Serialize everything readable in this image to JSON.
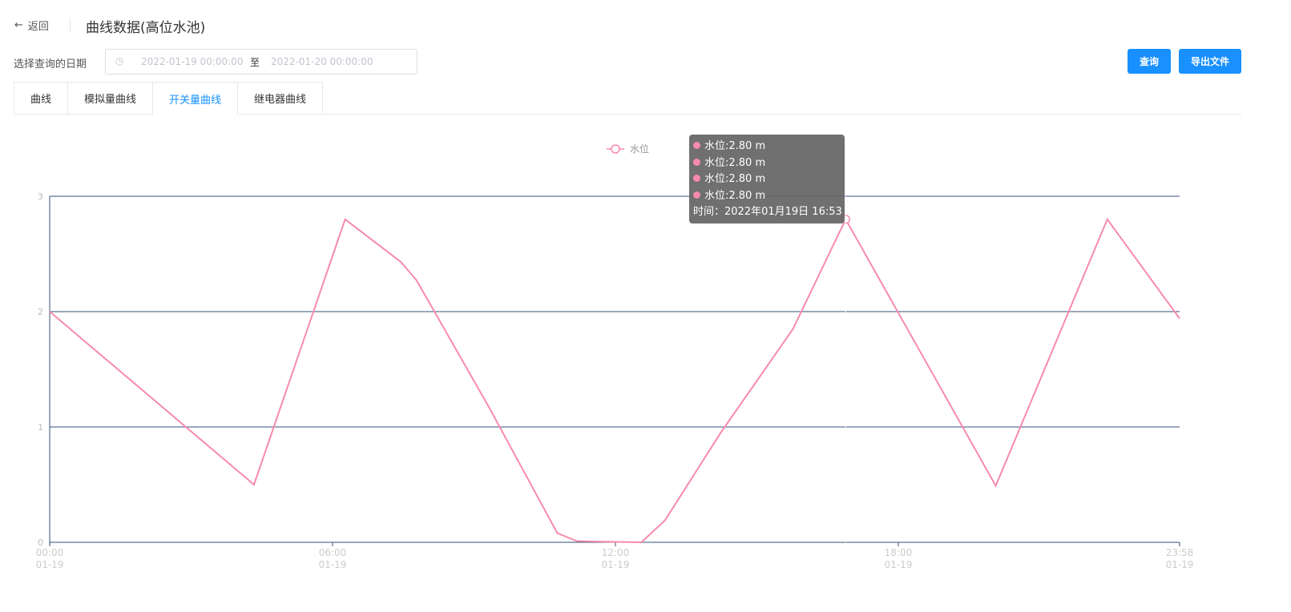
{
  "header": {
    "back_label": "返回",
    "title": "曲线数据(高位水池)"
  },
  "filter": {
    "label": "选择查询的日期",
    "start": "2022-01-19 00:00:00",
    "separator": "至",
    "end": "2022-01-20 00:00:00",
    "query_label": "查询",
    "export_label": "导出文件"
  },
  "tabs": [
    {
      "label": "曲线"
    },
    {
      "label": "模拟量曲线"
    },
    {
      "label": "开关量曲线",
      "active": true
    },
    {
      "label": "继电器曲线"
    }
  ],
  "tooltip": {
    "rows": [
      "水位:2.80 m",
      "水位:2.80 m",
      "水位:2.80 m",
      "水位:2.80 m"
    ],
    "time": "时间：2022年01月19日 16:53"
  },
  "chart_data": {
    "type": "line",
    "legend": [
      "水位"
    ],
    "legend_position": "top-center",
    "series": [
      {
        "name": "水位",
        "color": "#f78bab",
        "points": [
          [
            "00:00",
            2.0
          ],
          [
            "04:20",
            0.5
          ],
          [
            "06:16",
            2.8
          ],
          [
            "07:27",
            2.43
          ],
          [
            "07:47",
            2.27
          ],
          [
            "08:13",
            1.96
          ],
          [
            "09:20",
            1.16
          ],
          [
            "10:46",
            0.08
          ],
          [
            "11:11",
            0.01
          ],
          [
            "12:33",
            0
          ],
          [
            "13:03",
            0.19
          ],
          [
            "14:14",
            0.95
          ],
          [
            "15:46",
            1.85
          ],
          [
            "16:53",
            2.8
          ],
          [
            "20:04",
            0.49
          ],
          [
            "22:26",
            2.8
          ],
          [
            "23:58",
            1.94
          ]
        ]
      }
    ],
    "x_range": [
      "00:00",
      "23:58"
    ],
    "x_ticks": [
      [
        "00:00",
        "01-19"
      ],
      [
        "06:00",
        "01-19"
      ],
      [
        "12:00",
        "01-19"
      ],
      [
        "18:00",
        "01-19"
      ],
      [
        "23:58",
        "01-19"
      ]
    ],
    "ylim": [
      0,
      3
    ],
    "y_ticks": [
      "0",
      "1",
      "2",
      "3"
    ],
    "grid": true,
    "highlight": "16:53"
  }
}
